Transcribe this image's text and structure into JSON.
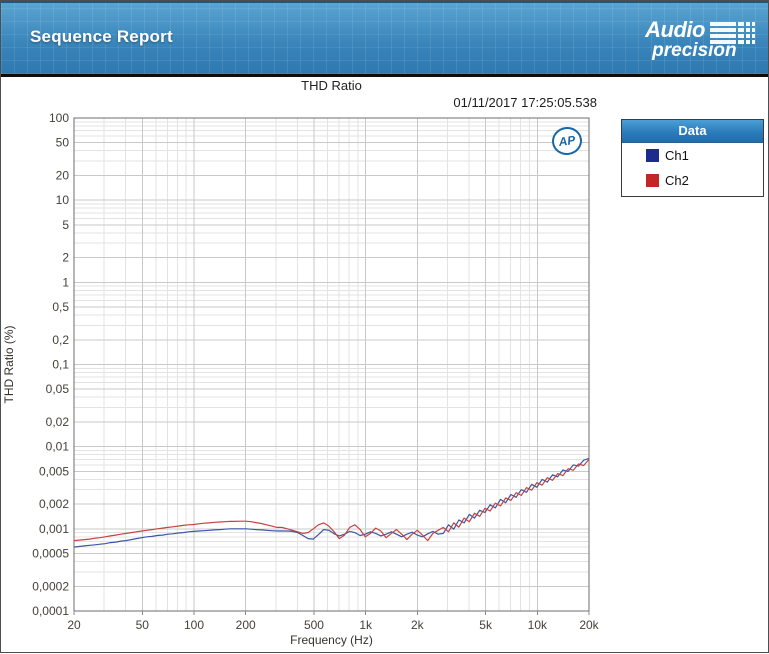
{
  "header": {
    "title": "Sequence Report",
    "brand_line1": "Audio",
    "brand_line2": "precision"
  },
  "report": {
    "chart_title": "THD Ratio",
    "timestamp": "01/11/2017 17:25:05.538",
    "ap_logo_text": "AP"
  },
  "legend": {
    "title": "Data",
    "items": [
      {
        "label": "Ch1",
        "color": "#1b2b8e"
      },
      {
        "label": "Ch2",
        "color": "#c32628"
      }
    ]
  },
  "chart_data": {
    "type": "line",
    "title": "THD Ratio",
    "xlabel": "Frequency (Hz)",
    "ylabel": "THD Ratio (%)",
    "x_scale": "log",
    "y_scale": "log",
    "xlim": [
      20,
      20000
    ],
    "ylim": [
      0.0001,
      100
    ],
    "grid": "major+minor log grid",
    "legend_position": "right",
    "x_ticks": [
      {
        "v": 20,
        "label": "20"
      },
      {
        "v": 50,
        "label": "50"
      },
      {
        "v": 100,
        "label": "100"
      },
      {
        "v": 200,
        "label": "200"
      },
      {
        "v": 500,
        "label": "500"
      },
      {
        "v": 1000,
        "label": "1k"
      },
      {
        "v": 2000,
        "label": "2k"
      },
      {
        "v": 5000,
        "label": "5k"
      },
      {
        "v": 10000,
        "label": "10k"
      },
      {
        "v": 20000,
        "label": "20k"
      }
    ],
    "y_ticks": [
      {
        "v": 100,
        "label": "100"
      },
      {
        "v": 50,
        "label": "50"
      },
      {
        "v": 20,
        "label": "20"
      },
      {
        "v": 10,
        "label": "10"
      },
      {
        "v": 5,
        "label": "5"
      },
      {
        "v": 2,
        "label": "2"
      },
      {
        "v": 1,
        "label": "1"
      },
      {
        "v": 0.5,
        "label": "0,5"
      },
      {
        "v": 0.2,
        "label": "0,2"
      },
      {
        "v": 0.1,
        "label": "0,1"
      },
      {
        "v": 0.05,
        "label": "0,05"
      },
      {
        "v": 0.02,
        "label": "0,02"
      },
      {
        "v": 0.01,
        "label": "0,01"
      },
      {
        "v": 0.005,
        "label": "0,005"
      },
      {
        "v": 0.002,
        "label": "0,002"
      },
      {
        "v": 0.001,
        "label": "0,001"
      },
      {
        "v": 0.0005,
        "label": "0,0005"
      },
      {
        "v": 0.0002,
        "label": "0,0002"
      },
      {
        "v": 0.0001,
        "label": "0,0001"
      }
    ],
    "x": [
      20,
      21.4,
      23,
      24.7,
      26.5,
      28.4,
      30.4,
      32.6,
      35,
      37.5,
      40.2,
      43.1,
      46.2,
      49.6,
      53.2,
      57,
      61.1,
      65.6,
      70.3,
      75.4,
      80.8,
      86.7,
      92.9,
      99.6,
      106.8,
      114.5,
      122.8,
      131.7,
      141.2,
      151.3,
      162.3,
      174,
      186.6,
      200,
      214.5,
      230,
      246.6,
      264.4,
      283.5,
      304,
      326,
      349.5,
      374.7,
      401.8,
      430.8,
      461.9,
      495.3,
      531.1,
      569.4,
      610.6,
      654.7,
      702,
      752.7,
      807.1,
      865.4,
      927.9,
      995,
      1066.8,
      1143.9,
      1226.5,
      1315.1,
      1410.1,
      1512,
      1621.2,
      1738.3,
      1863.9,
      1998.5,
      2142.9,
      2297.7,
      2463.7,
      2641.7,
      2832.5,
      3037.1,
      3256.5,
      3491.7,
      3744,
      4014.4,
      4304.4,
      4615.4,
      4948.8,
      5306.3,
      5689.7,
      6100.7,
      6541.5,
      7014,
      7520.8,
      8064.1,
      8646.8,
      9271.5,
      9941.4,
      10659.6,
      11429.7,
      12255.5,
      13141,
      14090.4,
      15108.4,
      16199.9,
      17370.4,
      18625.4,
      20000
    ],
    "series": [
      {
        "name": "Ch1",
        "color": "#3c55a5",
        "values": [
          0.0006,
          0.00061,
          0.00062,
          0.00063,
          0.00064,
          0.00065,
          0.00066,
          0.00068,
          0.00069,
          0.00071,
          0.00072,
          0.00074,
          0.00076,
          0.00078,
          0.0008,
          0.00081,
          0.00083,
          0.00084,
          0.00086,
          0.00087,
          0.00089,
          0.0009,
          0.00092,
          0.00093,
          0.00094,
          0.00095,
          0.00096,
          0.00097,
          0.00098,
          0.00099,
          0.001,
          0.001,
          0.001,
          0.001,
          0.00099,
          0.00098,
          0.00097,
          0.00096,
          0.00095,
          0.00094,
          0.00094,
          0.00094,
          0.00093,
          0.0009,
          0.00083,
          0.00076,
          0.00075,
          0.00085,
          0.00098,
          0.00096,
          0.00087,
          0.00082,
          0.00086,
          0.00093,
          0.0009,
          0.00083,
          0.00086,
          0.00092,
          0.00088,
          0.00082,
          0.00086,
          0.00092,
          0.00086,
          0.0008,
          0.00086,
          0.00091,
          0.00084,
          0.0008,
          0.00087,
          0.00093,
          0.00086,
          0.00088,
          0.00112,
          0.00099,
          0.00128,
          0.00118,
          0.0015,
          0.00135,
          0.00168,
          0.00158,
          0.00196,
          0.0018,
          0.00228,
          0.00208,
          0.00262,
          0.00242,
          0.003,
          0.00278,
          0.00348,
          0.0032,
          0.004,
          0.0037,
          0.00455,
          0.0043,
          0.0052,
          0.005,
          0.006,
          0.0058,
          0.00685,
          0.0072
        ]
      },
      {
        "name": "Ch2",
        "color": "#c04540",
        "values": [
          0.00072,
          0.00073,
          0.00074,
          0.00075,
          0.00077,
          0.00078,
          0.0008,
          0.00082,
          0.00084,
          0.00086,
          0.00088,
          0.0009,
          0.00092,
          0.00094,
          0.00096,
          0.00098,
          0.001,
          0.00102,
          0.00104,
          0.00106,
          0.00108,
          0.0011,
          0.00112,
          0.00113,
          0.00115,
          0.00117,
          0.00118,
          0.0012,
          0.00121,
          0.00122,
          0.00123,
          0.00123,
          0.00124,
          0.00124,
          0.00122,
          0.00119,
          0.00116,
          0.00112,
          0.00108,
          0.00104,
          0.00104,
          0.001,
          0.00096,
          0.00092,
          0.00088,
          0.0009,
          0.001,
          0.00112,
          0.00118,
          0.00108,
          0.00092,
          0.00076,
          0.00084,
          0.00104,
          0.00112,
          0.00098,
          0.0008,
          0.00088,
          0.00102,
          0.00094,
          0.00078,
          0.00088,
          0.00098,
          0.00086,
          0.00074,
          0.00086,
          0.00096,
          0.00084,
          0.00072,
          0.00088,
          0.00096,
          0.00104,
          0.00092,
          0.00118,
          0.00105,
          0.00135,
          0.00122,
          0.00155,
          0.00142,
          0.00178,
          0.00165,
          0.00205,
          0.0019,
          0.00238,
          0.00222,
          0.00275,
          0.00255,
          0.00318,
          0.00295,
          0.00365,
          0.0034,
          0.0042,
          0.0039,
          0.0047,
          0.00445,
          0.0054,
          0.00515,
          0.00615,
          0.0059,
          0.007
        ]
      }
    ]
  }
}
